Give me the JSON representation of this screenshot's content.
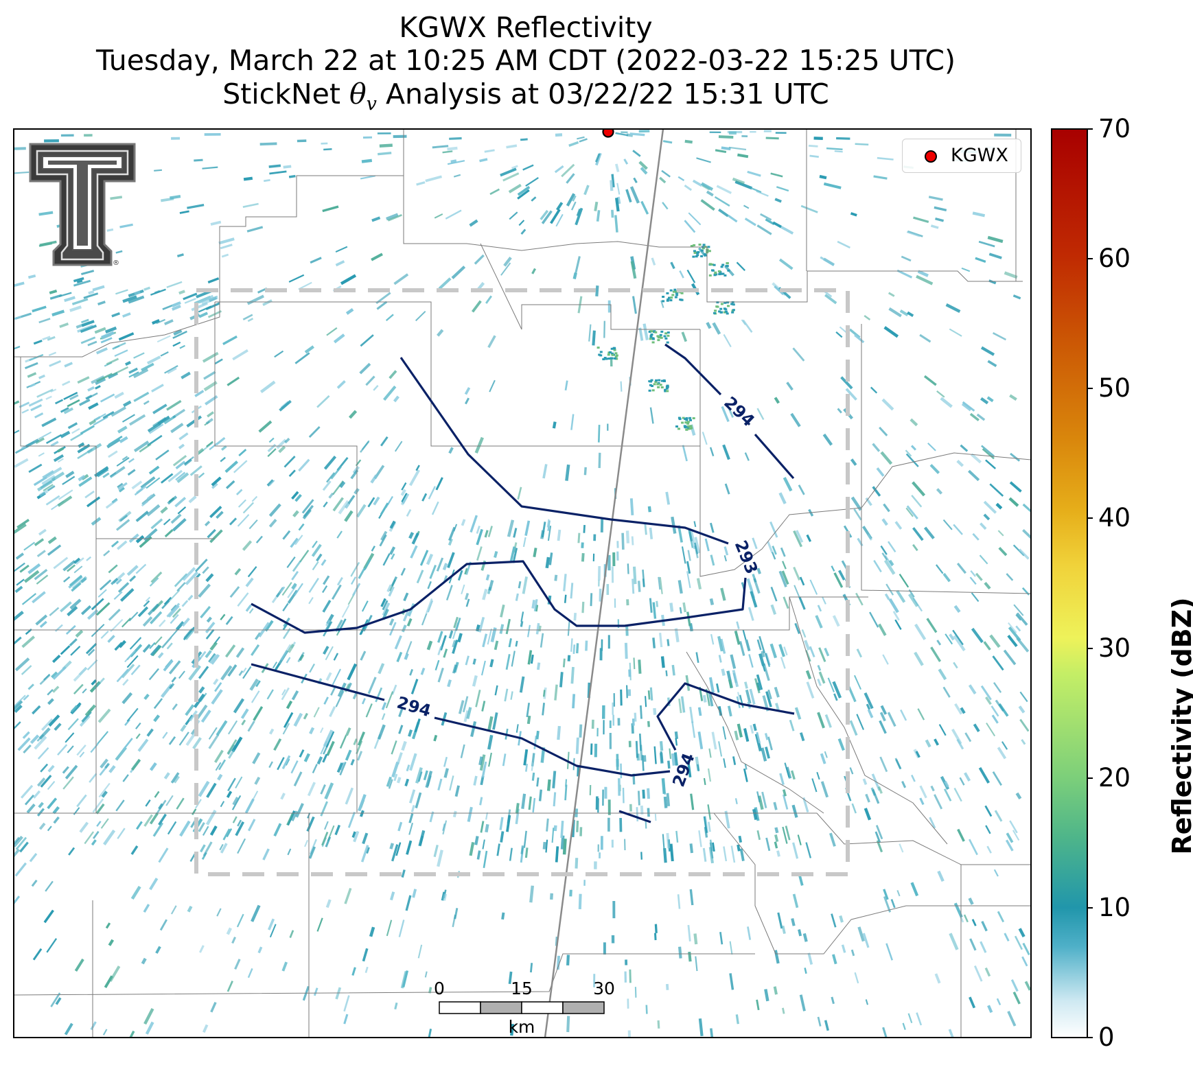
{
  "title": {
    "line1": "KGWX Reflectivity",
    "line2": "Tuesday, March 22 at 10:25 AM CDT (2022-03-22 15:25 UTC)",
    "line3_prefix": "StickNet ",
    "line3_symbol": "θ",
    "line3_sub": "v",
    "line3_suffix": " Analysis at 03/22/22 15:31 UTC"
  },
  "legend": {
    "label": "KGWX",
    "marker_color": "#ee0000"
  },
  "colorbar": {
    "label": "Reflectivity (dBZ)",
    "ticks": [
      "0",
      "10",
      "20",
      "30",
      "40",
      "50",
      "60",
      "70"
    ],
    "range": [
      0,
      70
    ]
  },
  "scalebar": {
    "ticks": [
      "0",
      "15",
      "30"
    ],
    "unit": "km"
  },
  "contours": [
    {
      "label": "294",
      "value": 294
    },
    {
      "label": "293",
      "value": 293
    },
    {
      "label": "294",
      "value": 294
    },
    {
      "label": "294",
      "value": 294
    }
  ],
  "logo": {
    "name": "Texas Tech Double T",
    "mark": "®"
  },
  "colors": {
    "contour": "#0a2166",
    "analysis_box": "#c8c8c8",
    "radar_site": "#ee0000",
    "reflectivity_low": "#2a9bb2"
  }
}
